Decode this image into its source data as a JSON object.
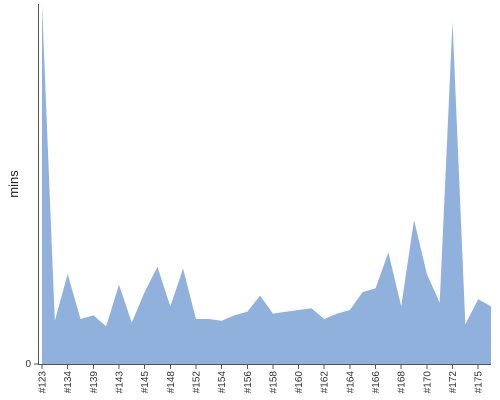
{
  "chart_data": {
    "type": "area",
    "title": "",
    "xlabel": "",
    "ylabel": "mins",
    "color": "#8fb1dc",
    "ylim": [
      0,
      100
    ],
    "grid": false,
    "y_ticks": [
      0
    ],
    "x_tick_labels": [
      "#123",
      "#134",
      "#139",
      "#143",
      "#145",
      "#148",
      "#152",
      "#154",
      "#156",
      "#158",
      "#160",
      "#162",
      "#164",
      "#166",
      "#168",
      "#170",
      "#172",
      "#175"
    ],
    "x_tick_index": [
      0,
      2,
      4,
      6,
      8,
      10,
      12,
      14,
      16,
      18,
      20,
      22,
      24,
      26,
      28,
      30,
      32,
      34
    ],
    "series": [
      {
        "values": [
          100,
          12,
          25,
          12.5,
          13.5,
          10.5,
          22,
          11.5,
          20,
          27,
          16,
          26.5,
          12.5,
          12.5,
          12,
          13.5,
          14.5,
          19,
          14,
          14.5,
          15,
          15.5,
          12.5,
          14,
          15,
          20,
          21,
          31,
          16,
          40,
          25,
          17,
          95,
          11,
          18,
          16
        ]
      }
    ]
  }
}
